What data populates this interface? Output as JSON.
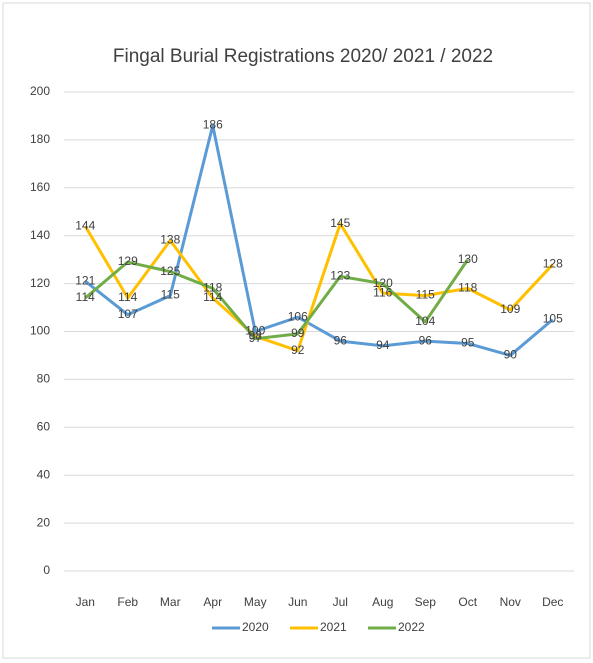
{
  "chart_data": {
    "type": "line",
    "title": "Fingal Burial Registrations 2020/ 2021 / 2022",
    "categories": [
      "Jan",
      "Feb",
      "Mar",
      "Apr",
      "May",
      "Jun",
      "Jul",
      "Aug",
      "Sep",
      "Oct",
      "Nov",
      "Dec"
    ],
    "series": [
      {
        "name": "2020",
        "color": "#5b9bd5",
        "values": [
          121,
          107,
          115,
          186,
          100,
          106,
          96,
          94,
          96,
          95,
          90,
          105
        ]
      },
      {
        "name": "2021",
        "color": "#ffc000",
        "values": [
          144,
          114,
          138,
          114,
          98,
          92,
          145,
          116,
          115,
          118,
          109,
          128
        ]
      },
      {
        "name": "2022",
        "color": "#70ad47",
        "values": [
          114,
          129,
          125,
          118,
          97,
          99,
          123,
          120,
          104,
          130,
          null,
          null
        ]
      }
    ],
    "ylim": [
      0,
      200
    ],
    "yticks": [
      0,
      20,
      40,
      60,
      80,
      100,
      120,
      140,
      160,
      180,
      200
    ],
    "grid": true,
    "legend": "bottom",
    "data_labels": true
  }
}
